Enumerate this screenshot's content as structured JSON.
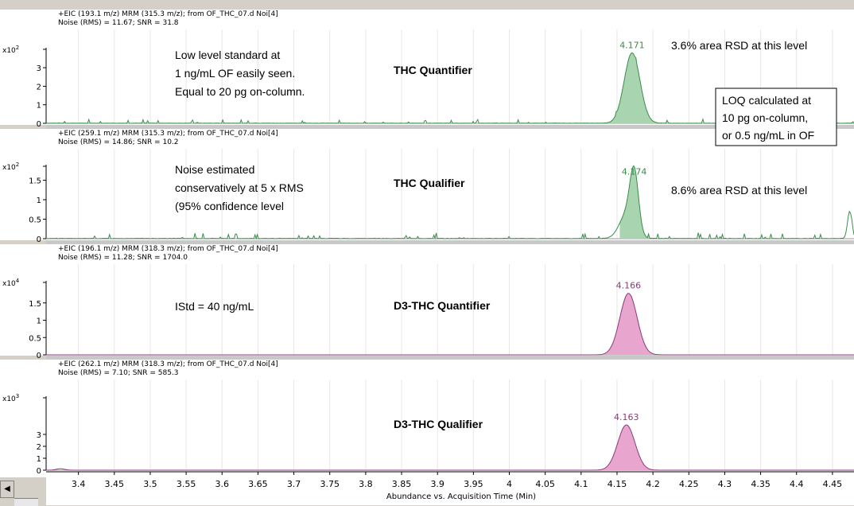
{
  "chart_data": {
    "type": "line",
    "x_axis": {
      "label": "Abundance vs. Acquisition Time (Min)",
      "range": [
        3.355,
        4.48
      ],
      "ticks": [
        "3.4",
        "3.45",
        "3.5",
        "3.55",
        "3.6",
        "3.65",
        "3.7",
        "3.75",
        "3.8",
        "3.85",
        "3.9",
        "3.95",
        "4",
        "4.05",
        "4.1",
        "4.15",
        "4.2",
        "4.25",
        "4.3",
        "4.35",
        "4.4",
        "4.45"
      ]
    },
    "panels": [
      {
        "header_line1": "+EIC (193.1 m/z) MRM (315.3 m/z); from OF_THC_07.d Noi[4]",
        "header_line2": "Noise (RMS) = 11.67; SNR = 31.8",
        "y_exponent_base": "x10",
        "y_exponent_power": "2",
        "y_ticks": [
          "3",
          "2",
          "1",
          "0"
        ],
        "ylim": [
          0,
          4.3
        ],
        "series_name": "THC Quantifier",
        "color": "#3a8c4a",
        "fill": "#a8d5b0",
        "peak_rt": 4.171,
        "peak_height": 3.8,
        "peak_width": 0.011,
        "peak_label": "4.171",
        "noise_level": 0.1,
        "noise_seed": 7,
        "extra_peaks": []
      },
      {
        "header_line1": "+EIC (259.1 m/z) MRM (315.3 m/z); from OF_THC_07.d Noi[4]",
        "header_line2": "Noise (RMS) = 14.86; SNR = 10.2",
        "y_exponent_base": "x10",
        "y_exponent_power": "2",
        "y_ticks": [
          "1.5",
          "1",
          "0.5",
          "0"
        ],
        "ylim": [
          0,
          1.9
        ],
        "series_name": "THC Qualifier",
        "color": "#3a8c4a",
        "fill": "#a8d5b0",
        "peak_rt": 4.174,
        "peak_height": 1.52,
        "peak_width": 0.006,
        "peak_label": "4.174",
        "noise_level": 0.07,
        "noise_seed": 13,
        "extra_peaks": [
          {
            "x": 4.163,
            "h": 0.6,
            "w": 0.01
          },
          {
            "x": 4.474,
            "h": 0.7,
            "w": 0.003
          }
        ]
      },
      {
        "header_line1": "+EIC (196.1 m/z) MRM (318.3 m/z); from OF_THC_07.d Noi[4]",
        "header_line2": "Noise (RMS) = 11.28; SNR = 1704.0",
        "y_exponent_base": "x10",
        "y_exponent_power": "4",
        "y_ticks": [
          "1.5",
          "1",
          "0.5",
          "0"
        ],
        "ylim": [
          0,
          2.1
        ],
        "series_name": "D3-THC Quantifier",
        "color": "#8b3a7a",
        "fill": "#e8a6cf",
        "peak_rt": 4.166,
        "peak_height": 1.78,
        "peak_width": 0.012,
        "peak_label": "4.166",
        "noise_level": 0,
        "noise_seed": 3,
        "extra_peaks": []
      },
      {
        "header_line1": "+EIC (262.1 m/z) MRM (318.3 m/z); from OF_THC_07.d Noi[4]",
        "header_line2": "Noise (RMS) = 7.10; SNR = 585.3",
        "y_exponent_base": "x10",
        "y_exponent_power": "3",
        "y_ticks": [
          "3",
          "2",
          "1",
          "0"
        ],
        "ylim": [
          0,
          4.5
        ],
        "series_name": "D3-THC Qualifier",
        "color": "#8b3a7a",
        "fill": "#e8a6cf",
        "peak_rt": 4.163,
        "peak_height": 3.8,
        "peak_width": 0.012,
        "peak_label": "4.163",
        "noise_level": 0,
        "noise_seed": 5,
        "extra_peaks": [
          {
            "x": 3.375,
            "h": 0.12,
            "w": 0.006
          }
        ]
      }
    ],
    "annotations": {
      "p1_note_line1": "Low level standard at",
      "p1_note_line2": "1 ng/mL OF easily seen.",
      "p1_note_line3": "Equal to 20 pg on-column.",
      "p1_rsd": "3.6% area RSD at this level",
      "loq_line1": "LOQ calculated at",
      "loq_line2": "10 pg on-column,",
      "loq_line3": "or 0.5 ng/mL in OF",
      "p2_note_line1": "Noise estimated",
      "p2_note_line2": "conservatively at 5 x RMS",
      "p2_note_line3": "(95% confidence level",
      "p2_rsd": "8.6% area RSD at this level",
      "p3_note": "IStd = 40 ng/mL"
    }
  },
  "ui": {
    "scroll_left_glyph": "◀"
  }
}
